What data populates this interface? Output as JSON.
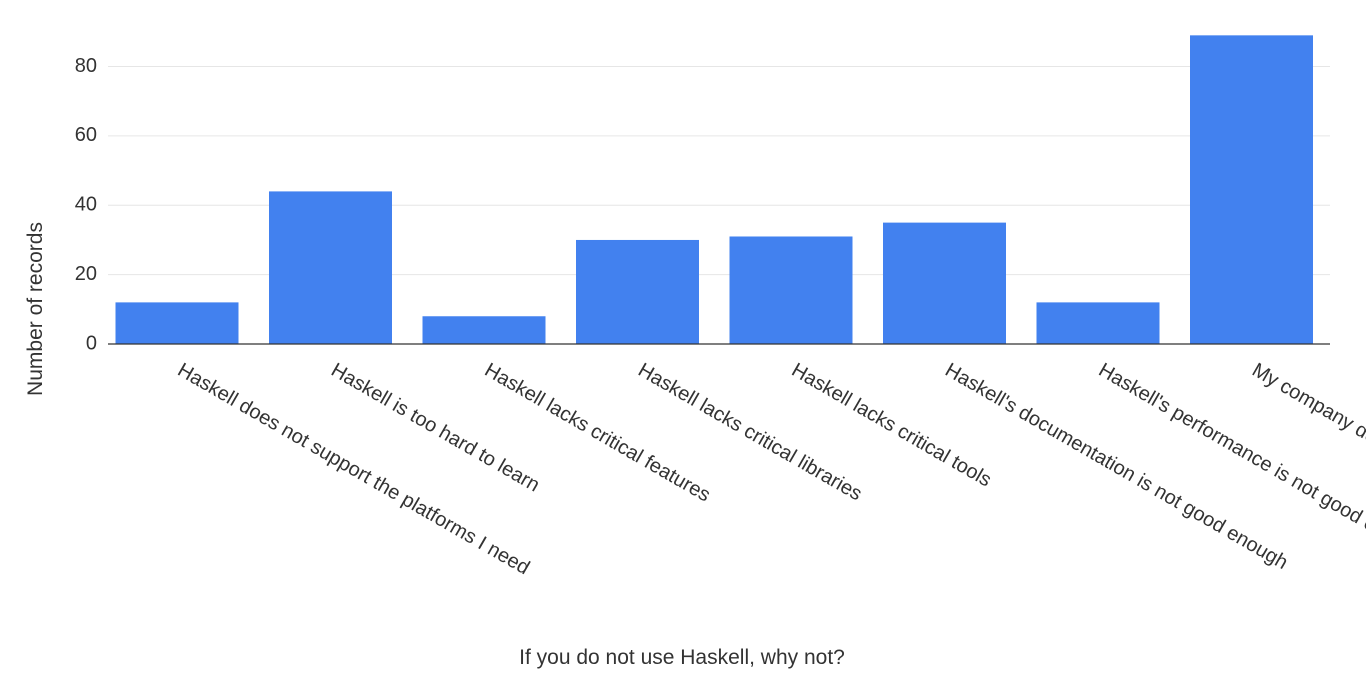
{
  "chart_data": {
    "type": "bar",
    "title": "",
    "xlabel": "If you do not use Haskell, why not?",
    "ylabel": "Number of records",
    "categories": [
      "Haskell does not support the platforms I need",
      "Haskell is too hard to learn",
      "Haskell lacks critical features",
      "Haskell lacks critical libraries",
      "Haskell lacks critical tools",
      "Haskell's documentation is not good enough",
      "Haskell's performance is not good enough",
      "My company doesn't use Haskell"
    ],
    "values": [
      12,
      44,
      8,
      30,
      31,
      35,
      12,
      89
    ],
    "ylim": [
      0,
      94
    ],
    "yticks": [
      0,
      20,
      40,
      60,
      80
    ],
    "grid": true,
    "legend": "none",
    "colors": {
      "bar": "#4281ef",
      "grid": "#e6e6e6",
      "axis": "#333333",
      "text": "#333333"
    }
  }
}
